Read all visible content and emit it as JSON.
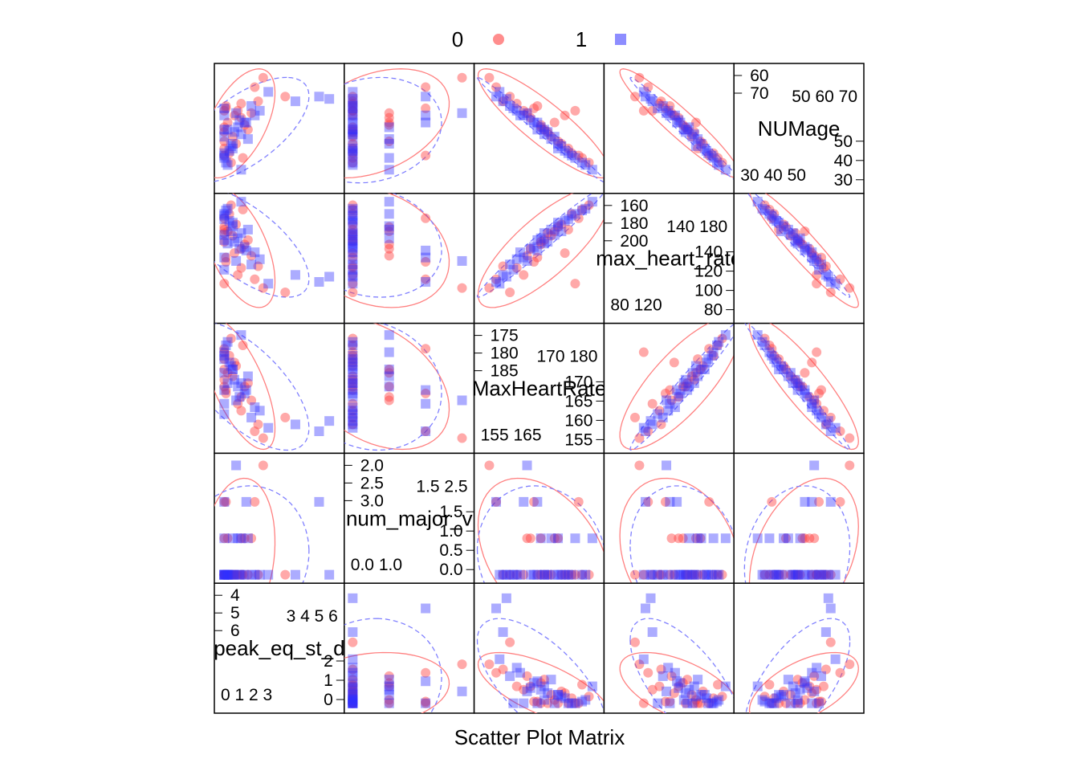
{
  "chart_data": {
    "type": "scatter",
    "title": "",
    "xlabel": "Scatter Plot Matrix",
    "legend": {
      "placement": "top",
      "entries": [
        {
          "name": "0",
          "color": "#ff7070",
          "marker": "circle"
        },
        {
          "name": "1",
          "color": "#7070ff",
          "marker": "square"
        }
      ]
    },
    "colors": {
      "group0": "#ff4040",
      "group1": "#3030ff",
      "ellipse0": "#ff8080",
      "ellipse1": "#8080ff"
    },
    "grid": false,
    "variables": [
      {
        "name": "peak_eq_st_depression",
        "label": "peak_eq_st_d",
        "range": [
          -0.3,
          6.8
        ],
        "ticks_left": [
          "0",
          "1",
          "2",
          "3"
        ],
        "ticks_right": [
          "3",
          "4",
          "5",
          "6"
        ],
        "ticks_side_a": [
          "0",
          "1",
          "2"
        ],
        "ticks_side_b": [
          "4",
          "5",
          "6"
        ]
      },
      {
        "name": "num_major_vessels",
        "label": "num_major_v",
        "range": [
          -0.1,
          3.2
        ],
        "ticks_left": [
          "0.0",
          "1.0"
        ],
        "ticks_right": [
          "1.5",
          "2.5"
        ],
        "ticks_side_a": [
          "0.0",
          "0.5",
          "1.0",
          "1.5"
        ],
        "ticks_side_b": [
          "2.0",
          "2.5",
          "3.0"
        ]
      },
      {
        "name": "MaxHeartRate",
        "label": "MaxHeartRate",
        "range": [
          153,
          188
        ],
        "ticks_left": [
          "155",
          "165"
        ],
        "ticks_right": [
          "170",
          "180"
        ],
        "ticks_side_a": [
          "155",
          "160",
          "165",
          "170"
        ],
        "ticks_side_b": [
          "175",
          "180",
          "185"
        ]
      },
      {
        "name": "max_heart_rate",
        "label": "max_heart_rate",
        "range": [
          70,
          208
        ],
        "ticks_left": [
          "80",
          "120"
        ],
        "ticks_right": [
          "140",
          "180"
        ],
        "ticks_side_a": [
          "80",
          "100",
          "120",
          "140"
        ],
        "ticks_side_b": [
          "160",
          "180",
          "200"
        ]
      },
      {
        "name": "NUMage",
        "label": "NUMage",
        "range": [
          27,
          78
        ],
        "ticks_left": [
          "30",
          "40",
          "50"
        ],
        "ticks_right": [
          "50",
          "60",
          "70"
        ],
        "ticks_side_a": [
          "30",
          "40",
          "50"
        ],
        "ticks_side_b": [
          "60",
          "70"
        ]
      }
    ],
    "series": [
      {
        "name": "0",
        "points": [
          [
            0.0,
            0,
            181,
            110,
            60
          ],
          [
            0.1,
            0,
            170,
            140,
            62
          ],
          [
            0.6,
            0,
            178,
            145,
            58
          ],
          [
            1.0,
            1,
            168,
            150,
            57
          ],
          [
            1.4,
            0,
            172,
            160,
            52
          ],
          [
            0.2,
            1,
            175,
            170,
            55
          ],
          [
            2.0,
            0,
            160,
            130,
            64
          ],
          [
            0.0,
            2,
            182,
            185,
            41
          ],
          [
            0.8,
            0,
            166,
            120,
            60
          ],
          [
            1.2,
            1,
            171,
            155,
            54
          ],
          [
            3.6,
            0,
            162,
            100,
            66
          ],
          [
            0.4,
            0,
            185,
            200,
            38
          ],
          [
            0.0,
            0,
            179,
            172,
            44
          ],
          [
            1.8,
            2,
            158,
            115,
            70
          ],
          [
            0.5,
            0,
            174,
            165,
            49
          ],
          [
            0.0,
            1,
            176,
            175,
            47
          ],
          [
            1.0,
            0,
            164,
            128,
            63
          ],
          [
            2.3,
            3,
            156,
            105,
            74
          ],
          [
            0.3,
            0,
            180,
            190,
            42
          ],
          [
            1.6,
            1,
            167,
            142,
            59
          ],
          [
            0.0,
            0,
            173,
            168,
            51
          ],
          [
            0.7,
            0,
            177,
            178,
            46
          ],
          [
            0.1,
            2,
            169,
            135,
            61
          ],
          [
            1.1,
            0,
            183,
            195,
            40
          ],
          [
            0.0,
            0,
            171,
            158,
            53
          ]
        ]
      },
      {
        "name": "1",
        "points": [
          [
            0.2,
            0,
            184,
            196,
            37
          ],
          [
            0.0,
            0,
            180,
            188,
            41
          ],
          [
            0.5,
            1,
            176,
            176,
            46
          ],
          [
            1.0,
            0,
            172,
            168,
            50
          ],
          [
            0.0,
            0,
            170,
            160,
            52
          ],
          [
            0.9,
            0,
            168,
            150,
            56
          ],
          [
            1.4,
            1,
            174,
            172,
            48
          ],
          [
            0.3,
            0,
            178,
            182,
            43
          ],
          [
            0.0,
            2,
            166,
            140,
            58
          ],
          [
            1.6,
            0,
            162,
            132,
            62
          ],
          [
            0.6,
            0,
            173,
            158,
            51
          ],
          [
            2.1,
            0,
            164,
            138,
            60
          ],
          [
            0.0,
            1,
            181,
            190,
            40
          ],
          [
            1.2,
            0,
            169,
            152,
            55
          ],
          [
            0.4,
            0,
            177,
            170,
            45
          ],
          [
            4.2,
            0,
            160,
            120,
            64
          ],
          [
            0.0,
            0,
            175,
            166,
            49
          ],
          [
            5.6,
            2,
            158,
            112,
            66
          ],
          [
            0.8,
            1,
            171,
            162,
            53
          ],
          [
            0.1,
            0,
            183,
            194,
            38
          ],
          [
            1.8,
            0,
            165,
            146,
            58
          ],
          [
            0.0,
            0,
            179,
            184,
            42
          ],
          [
            0.7,
            3,
            167,
            136,
            59
          ],
          [
            6.2,
            0,
            161,
            118,
            65
          ],
          [
            0.2,
            0,
            172,
            156,
            52
          ],
          [
            1.0,
            1,
            186,
            204,
            35
          ],
          [
            0.0,
            0,
            163,
            126,
            61
          ],
          [
            2.6,
            0,
            159,
            110,
            68
          ],
          [
            0.5,
            0,
            176,
            180,
            44
          ],
          [
            1.3,
            2,
            170,
            148,
            55
          ]
        ]
      }
    ]
  }
}
